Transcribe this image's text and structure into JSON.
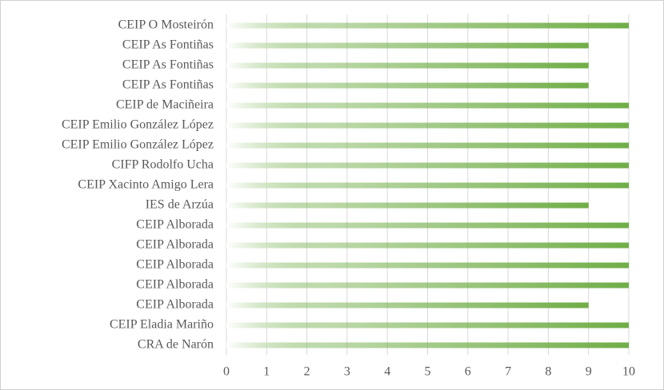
{
  "chart_data": {
    "type": "bar",
    "orientation": "horizontal",
    "categories": [
      "CEIP O Mosteirón",
      "CEIP As Fontiñas",
      "CEIP As Fontiñas",
      "CEIP As Fontiñas",
      "CEIP de Maciñeira",
      "CEIP Emilio González López",
      "CEIP Emilio González López",
      "CIFP Rodolfo Ucha",
      "CEIP Xacinto Amigo Lera",
      "IES de Arzúa",
      "CEIP Alborada",
      "CEIP Alborada",
      "CEIP Alborada",
      "CEIP Alborada",
      "CEIP Alborada",
      "CEIP Eladia Mariño",
      "CRA de Narón"
    ],
    "values": [
      10,
      9,
      9,
      9,
      10,
      10,
      10,
      10,
      10,
      9,
      10,
      10,
      10,
      10,
      9,
      10,
      10
    ],
    "color": "#70ad47",
    "xlim": [
      0,
      10
    ],
    "xticks": [
      0,
      1,
      2,
      3,
      4,
      5,
      6,
      7,
      8,
      9,
      10
    ],
    "grid": true
  }
}
